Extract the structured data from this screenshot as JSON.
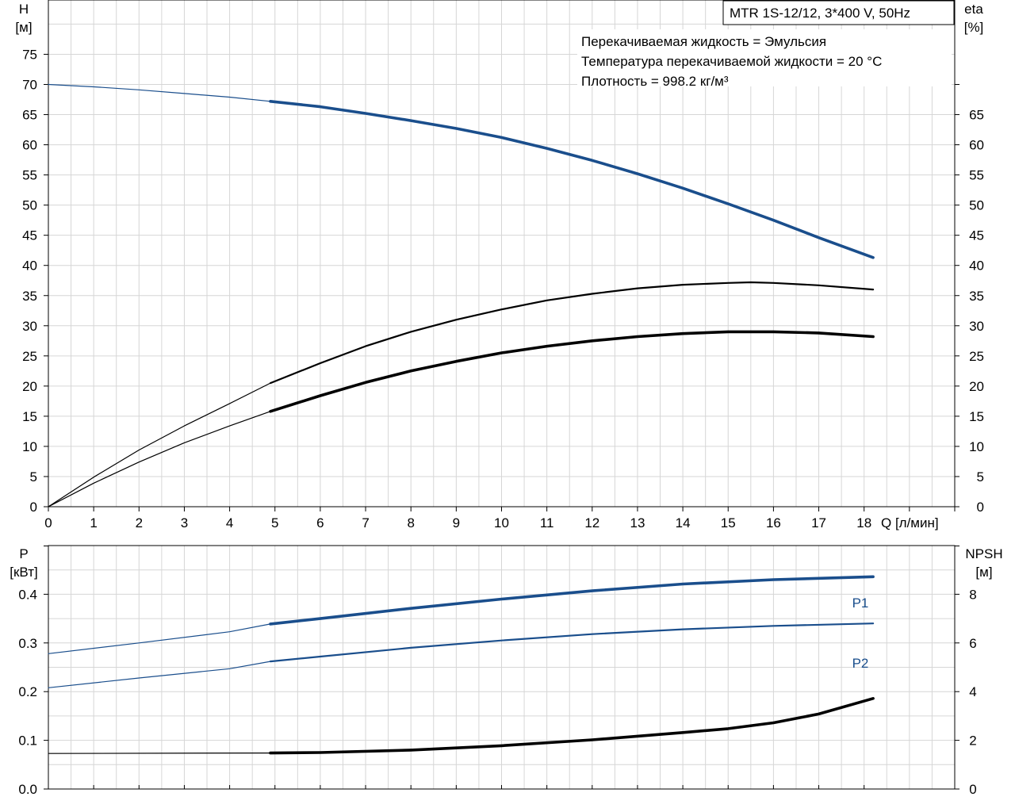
{
  "chart_data": [
    {
      "type": "line",
      "title": "MTR 1S-12/12, 3*400 V, 50Hz",
      "info_lines": [
        "Перекачиваемая жидкость = Эмульсия",
        "Температура перекачиваемой жидкости = 20 °C",
        "Плотность = 998.2 кг/м³"
      ],
      "xlabel": "Q [л/мин]",
      "ylabel_left": [
        "H",
        "[м]"
      ],
      "ylabel_right": [
        "eta",
        "[%]"
      ],
      "xlim": [
        0,
        20
      ],
      "ylim": [
        0,
        84
      ],
      "x_ticks": [
        0,
        1,
        2,
        3,
        4,
        5,
        6,
        7,
        8,
        9,
        10,
        11,
        12,
        13,
        14,
        15,
        16,
        17,
        18
      ],
      "y_ticks_left": [
        0,
        5,
        10,
        15,
        20,
        25,
        30,
        35,
        40,
        45,
        50,
        55,
        60,
        65,
        70,
        75
      ],
      "y_ticks_right": [
        0,
        5,
        10,
        15,
        20,
        25,
        30,
        35,
        40,
        45,
        50,
        55,
        60,
        65
      ],
      "grid": true,
      "series": [
        {
          "color": "#1a4e8c",
          "axis": "left",
          "thin": [
            [
              0,
              70
            ],
            [
              1,
              69.6
            ],
            [
              2,
              69.1
            ],
            [
              3,
              68.5
            ],
            [
              4,
              67.9
            ],
            [
              4.9,
              67.2
            ]
          ],
          "bold": [
            [
              4.9,
              67.2
            ],
            [
              6,
              66.3
            ],
            [
              7,
              65.2
            ],
            [
              8,
              64.0
            ],
            [
              9,
              62.7
            ],
            [
              10,
              61.2
            ],
            [
              11,
              59.4
            ],
            [
              12,
              57.4
            ],
            [
              13,
              55.2
            ],
            [
              14,
              52.8
            ],
            [
              15,
              50.2
            ],
            [
              16,
              47.5
            ],
            [
              17,
              44.6
            ],
            [
              18.2,
              41.3
            ]
          ]
        },
        {
          "color": "#000000",
          "axis": "right",
          "thin": [
            [
              0,
              0
            ],
            [
              1,
              4.9
            ],
            [
              2,
              9.4
            ],
            [
              3,
              13.4
            ],
            [
              4,
              17.1
            ],
            [
              4.9,
              20.5
            ]
          ],
          "normal": [
            [
              4.9,
              20.5
            ],
            [
              6,
              23.8
            ],
            [
              7,
              26.6
            ],
            [
              8,
              29.0
            ],
            [
              9,
              31.0
            ],
            [
              10,
              32.7
            ],
            [
              11,
              34.2
            ],
            [
              12,
              35.3
            ],
            [
              13,
              36.2
            ],
            [
              14,
              36.8
            ],
            [
              15,
              37.1
            ],
            [
              15.5,
              37.2
            ],
            [
              16,
              37.1
            ],
            [
              17,
              36.7
            ],
            [
              18.2,
              36.0
            ]
          ]
        },
        {
          "color": "#000000",
          "axis": "right",
          "thin": [
            [
              0,
              0
            ],
            [
              1,
              3.9
            ],
            [
              2,
              7.4
            ],
            [
              3,
              10.6
            ],
            [
              4,
              13.4
            ],
            [
              4.9,
              15.8
            ]
          ],
          "bold": [
            [
              4.9,
              15.8
            ],
            [
              6,
              18.4
            ],
            [
              7,
              20.6
            ],
            [
              8,
              22.5
            ],
            [
              9,
              24.1
            ],
            [
              10,
              25.5
            ],
            [
              11,
              26.6
            ],
            [
              12,
              27.5
            ],
            [
              13,
              28.2
            ],
            [
              14,
              28.7
            ],
            [
              15,
              29.0
            ],
            [
              16,
              29.0
            ],
            [
              17,
              28.8
            ],
            [
              18.2,
              28.2
            ]
          ]
        }
      ]
    },
    {
      "type": "line",
      "xlim": [
        0,
        20
      ],
      "ylabel_left": [
        "P",
        "[кВт]"
      ],
      "ylabel_right": [
        "NPSH",
        "[м]"
      ],
      "ylim_left": [
        0,
        0.5
      ],
      "ylim_right": [
        0,
        10
      ],
      "y_ticks_left": [
        "0.0",
        "0.1",
        "0.2",
        "0.3",
        "0.4"
      ],
      "y_ticks_right": [
        "0",
        "2",
        "4",
        "6",
        "8"
      ],
      "grid": true,
      "series": [
        {
          "name": "P1",
          "color": "#1a4e8c",
          "axis": "left",
          "thin": [
            [
              0,
              0.278
            ],
            [
              2,
              0.3
            ],
            [
              4,
              0.323
            ],
            [
              4.9,
              0.339
            ]
          ],
          "bold": [
            [
              4.9,
              0.339
            ],
            [
              6,
              0.35
            ],
            [
              8,
              0.371
            ],
            [
              10,
              0.39
            ],
            [
              12,
              0.407
            ],
            [
              14,
              0.421
            ],
            [
              16,
              0.43
            ],
            [
              18.2,
              0.436
            ]
          ]
        },
        {
          "name": "P2",
          "color": "#1a4e8c",
          "axis": "left",
          "thin": [
            [
              0,
              0.208
            ],
            [
              2,
              0.228
            ],
            [
              4,
              0.247
            ],
            [
              4.9,
              0.262
            ]
          ],
          "normal": [
            [
              4.9,
              0.262
            ],
            [
              6,
              0.272
            ],
            [
              8,
              0.29
            ],
            [
              10,
              0.305
            ],
            [
              12,
              0.318
            ],
            [
              14,
              0.328
            ],
            [
              16,
              0.335
            ],
            [
              18.2,
              0.34
            ]
          ]
        },
        {
          "color": "#000000",
          "axis": "right",
          "thin": [
            [
              0,
              1.46
            ],
            [
              4.9,
              1.48
            ]
          ],
          "bold": [
            [
              4.9,
              1.48
            ],
            [
              6,
              1.5
            ],
            [
              8,
              1.6
            ],
            [
              10,
              1.78
            ],
            [
              12,
              2.02
            ],
            [
              14,
              2.32
            ],
            [
              15,
              2.48
            ],
            [
              16,
              2.72
            ],
            [
              17,
              3.08
            ],
            [
              18.2,
              3.72
            ]
          ]
        }
      ]
    }
  ]
}
